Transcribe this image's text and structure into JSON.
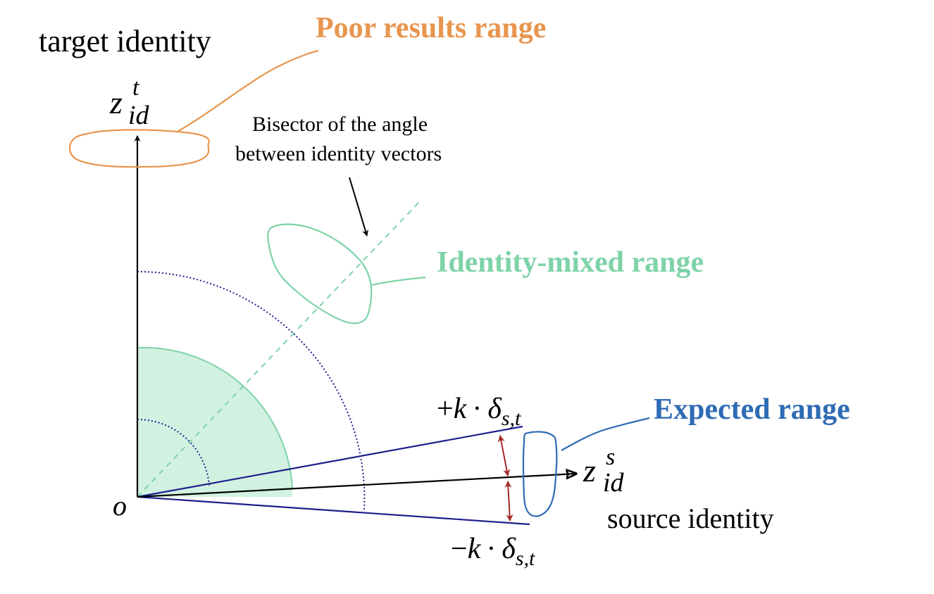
{
  "labels": {
    "target_identity": "target identity",
    "source_identity": "source identity",
    "origin": "o",
    "bisector_line1": "Bisector of the angle",
    "bisector_line2": "between identity vectors"
  },
  "vectors": {
    "target": {
      "base": "z",
      "sub": "id",
      "sup": "t"
    },
    "source": {
      "base": "z",
      "sub": "id",
      "sup": "s"
    }
  },
  "bounds": {
    "upper": {
      "sign": "+",
      "k": "k",
      "dot": "·",
      "delta": "δ",
      "sub": "s,t"
    },
    "lower": {
      "sign": "−",
      "k": "k",
      "dot": "·",
      "delta": "δ",
      "sub": "s,t"
    }
  },
  "regions": {
    "poor": {
      "label": "Poor results range"
    },
    "mixed": {
      "label": "Identity-mixed range"
    },
    "expected": {
      "label": "Expected range"
    }
  },
  "colors": {
    "poor": "#E8954E",
    "mixed": "#7ED3A8",
    "mixed_fill": "#D2F2E1",
    "expected": "#2E6BB4",
    "bound_lines": "#1E1E8C",
    "dotted_arcs": "#1E1E8C",
    "bound_arrows": "#A52A2A",
    "axes": "#000000"
  }
}
